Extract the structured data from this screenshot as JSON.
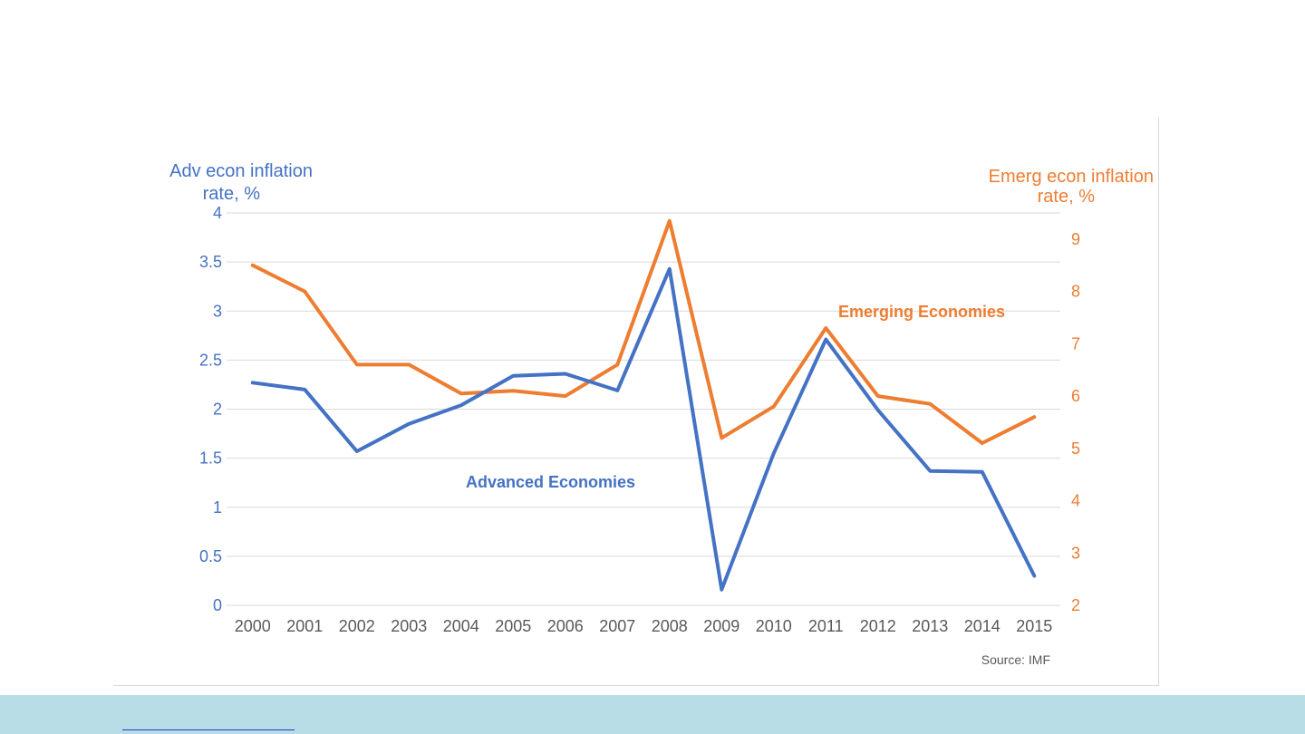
{
  "colors": {
    "advanced": "#4472c4",
    "emerging": "#ed7d31",
    "grid": "#d9d9d9",
    "tick_left": "#4472c4",
    "tick_right": "#ed7d31",
    "tick_x": "#595959",
    "footer": "#b9dde6"
  },
  "chart_data": {
    "type": "line",
    "categories": [
      "2000",
      "2001",
      "2002",
      "2003",
      "2004",
      "2005",
      "2006",
      "2007",
      "2008",
      "2009",
      "2010",
      "2011",
      "2012",
      "2013",
      "2014",
      "2015"
    ],
    "y_left": {
      "title_lines": [
        "Adv econ inflation",
        "rate, %"
      ],
      "ylim": [
        0,
        4
      ],
      "ticks": [
        "0",
        "0.5",
        "1",
        "1.5",
        "2",
        "2.5",
        "3",
        "3.5",
        "4"
      ]
    },
    "y_right": {
      "title_lines": [
        "Emerg econ inflation",
        "rate, %"
      ],
      "ylim": [
        2,
        9.5
      ],
      "ticks": [
        "2",
        "3",
        "4",
        "5",
        "6",
        "7",
        "8",
        "9"
      ]
    },
    "series": [
      {
        "name": "Advanced Economies",
        "axis": "left",
        "values": [
          2.27,
          2.2,
          1.57,
          1.85,
          2.04,
          2.34,
          2.36,
          2.19,
          3.43,
          0.16,
          1.55,
          2.71,
          1.99,
          1.37,
          1.36,
          0.3
        ]
      },
      {
        "name": "Emerging Economies",
        "axis": "right",
        "values": [
          8.5,
          8.0,
          6.6,
          6.6,
          6.05,
          6.1,
          6.0,
          6.6,
          9.35,
          5.2,
          5.8,
          7.3,
          6.0,
          5.85,
          5.1,
          5.6
        ]
      }
    ],
    "grid": true,
    "legend": "inline labels",
    "source": "Source: IMF"
  }
}
